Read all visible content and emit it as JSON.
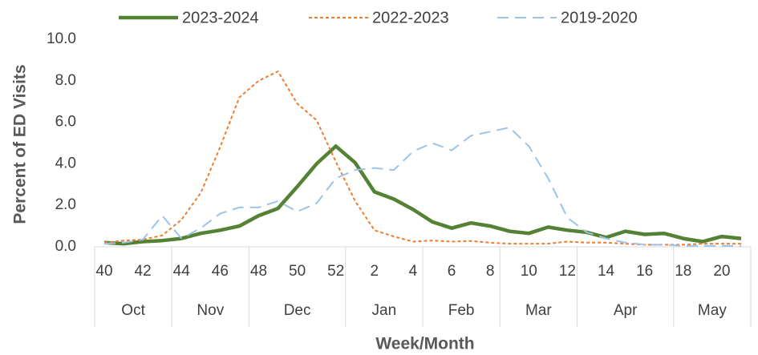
{
  "chart_data": {
    "type": "line",
    "x_label": "Week/Month",
    "y_label": "Percent of ED Visits",
    "categories": [
      40,
      null,
      42,
      null,
      44,
      null,
      46,
      null,
      48,
      null,
      50,
      null,
      52,
      null,
      2,
      null,
      4,
      null,
      6,
      null,
      8,
      null,
      10,
      null,
      12,
      null,
      14,
      null,
      16,
      null,
      18,
      null,
      20,
      null
    ],
    "month_groups": [
      {
        "label": "Oct",
        "weeks": 4
      },
      {
        "label": "Nov",
        "weeks": 4
      },
      {
        "label": "Dec",
        "weeks": 5
      },
      {
        "label": "Jan",
        "weeks": 4
      },
      {
        "label": "Feb",
        "weeks": 4
      },
      {
        "label": "Mar",
        "weeks": 4
      },
      {
        "label": "Apr",
        "weeks": 5
      },
      {
        "label": "May",
        "weeks": 4
      }
    ],
    "series": [
      {
        "name": "2023-2024",
        "color": "#548235",
        "dash": "solid",
        "values": [
          0.2,
          0.15,
          0.25,
          0.3,
          0.4,
          0.65,
          0.8,
          1.0,
          1.5,
          1.85,
          2.9,
          4.0,
          4.85,
          4.05,
          2.65,
          2.3,
          1.8,
          1.2,
          0.9,
          1.15,
          1.0,
          0.75,
          0.65,
          0.95,
          0.8,
          0.7,
          0.45,
          0.75,
          0.6,
          0.65,
          0.4,
          0.25,
          0.5,
          0.4
        ]
      },
      {
        "name": "2022-2023",
        "color": "#ED7D31",
        "dash": "dotted",
        "values": [
          0.2,
          0.3,
          0.35,
          0.55,
          1.3,
          2.6,
          4.8,
          7.2,
          8.0,
          8.45,
          6.9,
          6.1,
          4.1,
          2.2,
          0.8,
          0.5,
          0.25,
          0.3,
          0.25,
          0.28,
          0.2,
          0.15,
          0.15,
          0.15,
          0.25,
          0.2,
          0.2,
          0.15,
          0.1,
          0.1,
          0.1,
          0.15,
          0.15,
          0.15
        ]
      },
      {
        "name": "2019-2020",
        "color": "#9DC3E6",
        "dash": "dashed",
        "values": [
          0.15,
          0.2,
          0.35,
          1.5,
          0.4,
          0.9,
          1.6,
          1.9,
          1.9,
          2.2,
          1.7,
          2.1,
          3.3,
          3.7,
          3.8,
          3.7,
          4.6,
          5.0,
          4.65,
          5.35,
          5.55,
          5.75,
          4.85,
          3.3,
          1.4,
          0.7,
          0.4,
          0.2,
          0.1,
          0.1,
          0.05,
          0.05,
          0.05,
          0.05
        ]
      }
    ],
    "ylim": [
      0,
      10
    ],
    "yticks": [
      {
        "value": 0,
        "label": "0.0"
      },
      {
        "value": 2,
        "label": "2.0"
      },
      {
        "value": 4,
        "label": "4.0"
      },
      {
        "value": 6,
        "label": "6.0"
      },
      {
        "value": 8,
        "label": "8.0"
      },
      {
        "value": 10,
        "label": "10.0"
      }
    ],
    "grid": false,
    "legend": "top"
  }
}
